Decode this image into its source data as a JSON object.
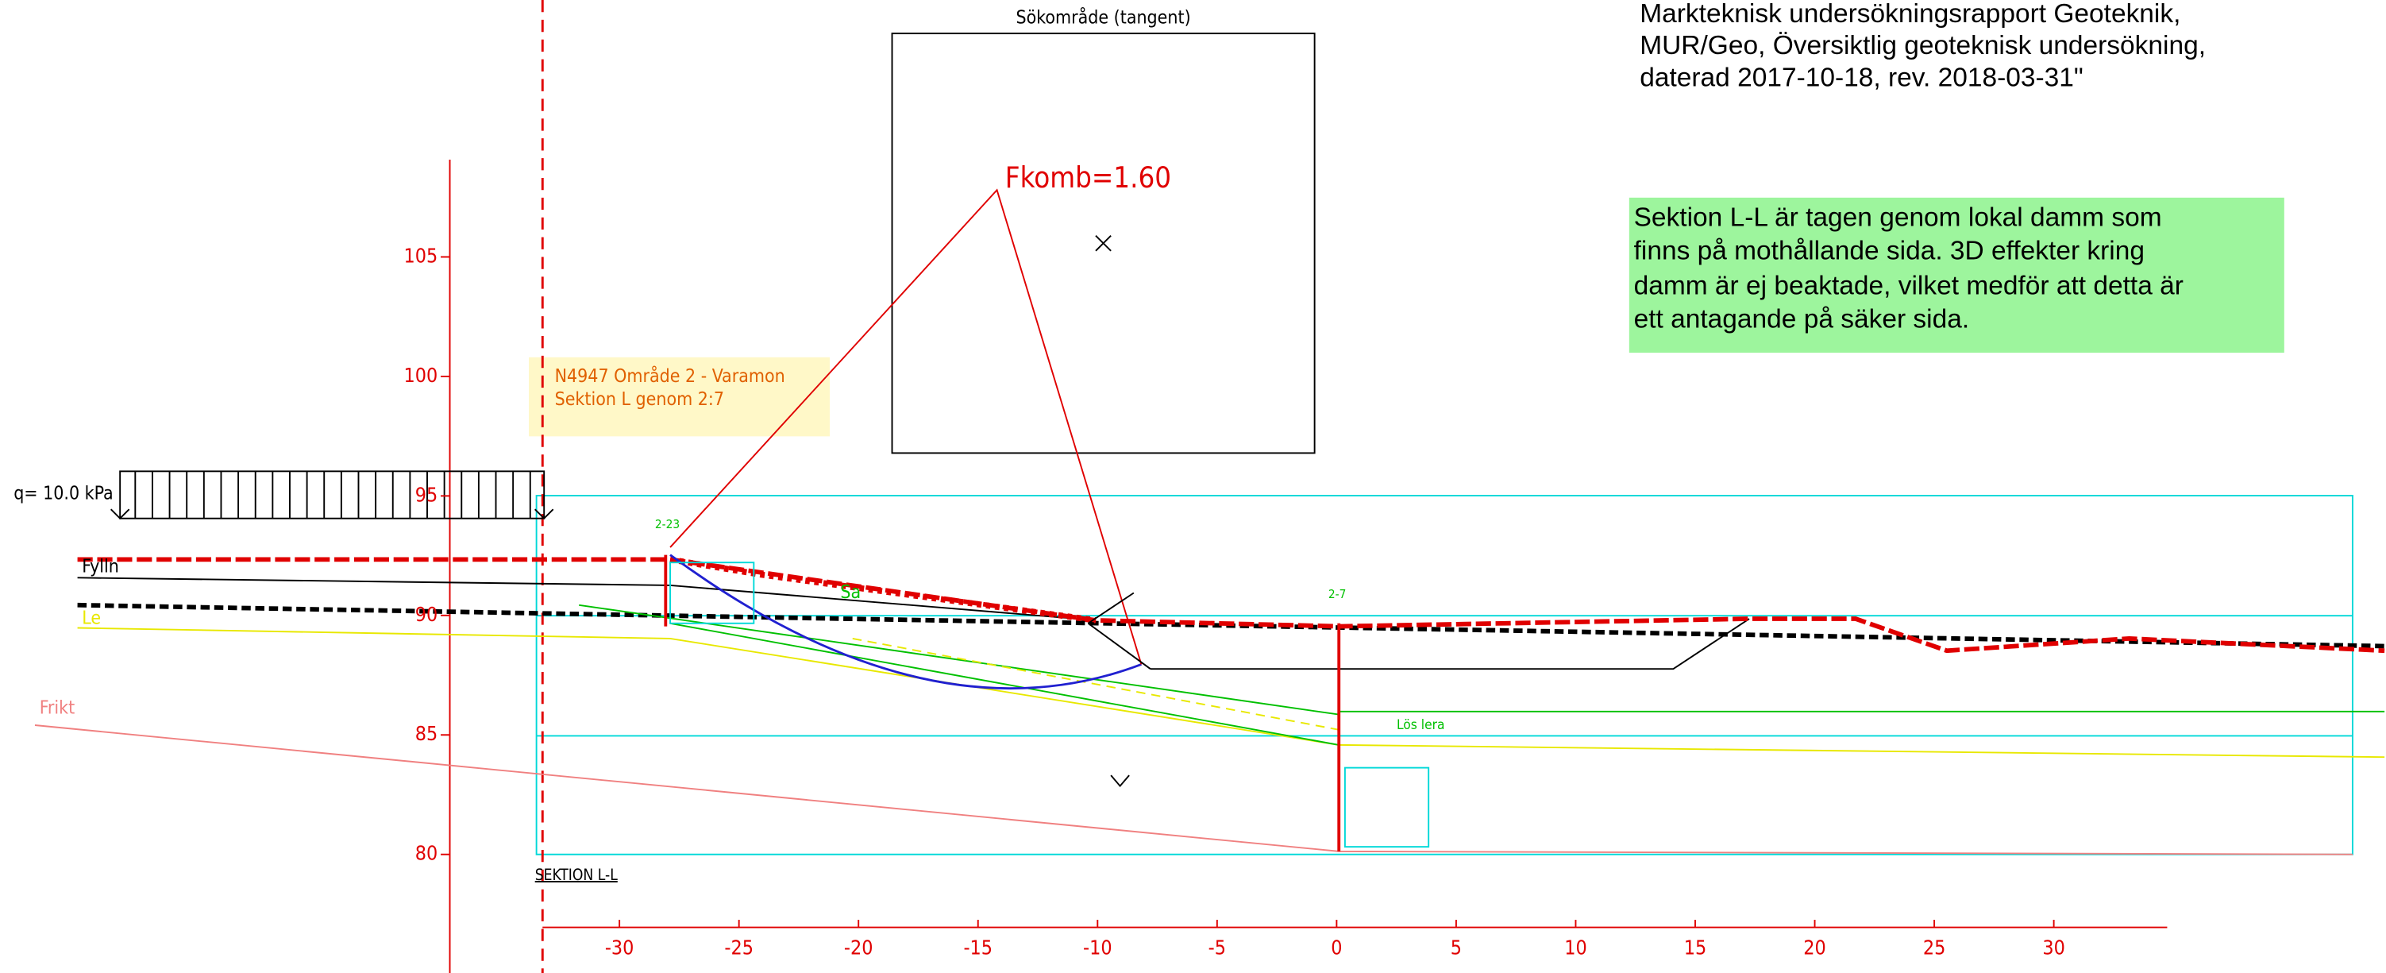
{
  "search_area": {
    "title": "Sökområde (tangent)"
  },
  "safety_factor": "Fkomb=1.60",
  "reference_note": [
    "Markteknisk  undersökningsrapport  Geoteknik,",
    "MUR/Geo, Översiktlig geoteknisk  undersökning,",
    "daterad  2017-10-18, rev. 2018-03-31\""
  ],
  "comment_box": [
    "Sektion L-L är tagen genom lokal damm som",
    "finns på mothållande sida. 3D effekter kring",
    "damm är ej beaktade, vilket medför att detta är",
    "ett antagande på säker sida."
  ],
  "project_note": [
    "N4947 Område 2 - Varamon",
    "Sektion L genom 2:7"
  ],
  "load": "q= 10.0  kPa",
  "layers": {
    "fill": "Fylln",
    "clay": "Le",
    "friction": "Frikt",
    "sand": "Sa",
    "loose_clay": "Lös lera"
  },
  "boreholes": [
    "2-23",
    "2-7"
  ],
  "section_label": "SEKTION L-L",
  "elevation_ticks": [
    105,
    100,
    95,
    90,
    85,
    80
  ],
  "distance_ticks": [
    -30,
    -25,
    -20,
    -15,
    -10,
    -5,
    0,
    5,
    10,
    15,
    20,
    25,
    30
  ]
}
